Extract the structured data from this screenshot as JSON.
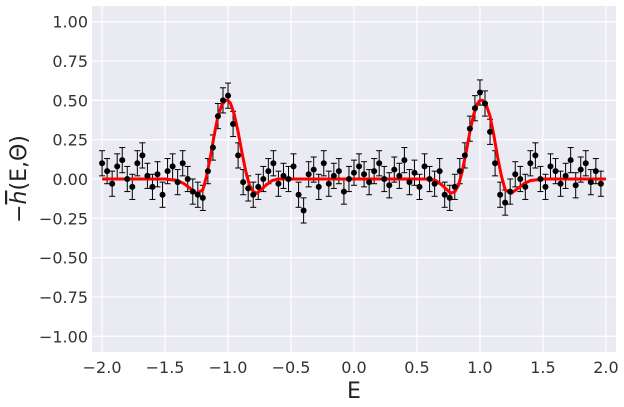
{
  "chart_data": {
    "type": "scatter",
    "xlabel": "E",
    "ylabel_main": "h",
    "ylabel_suffix": "(E,Θ)",
    "ylabel_prefix": "−",
    "xlim": [
      -2.08,
      2.08
    ],
    "ylim": [
      -1.1,
      1.1
    ],
    "grid": true,
    "colors": {
      "background": "#eaeaf2",
      "grid": "#ffffff",
      "points": "#000000",
      "fit_line": "#ff0000"
    },
    "xticks": [
      {
        "value": -2.0,
        "label": "−2.0"
      },
      {
        "value": -1.5,
        "label": "−1.5"
      },
      {
        "value": -1.0,
        "label": "−1.0"
      },
      {
        "value": -0.5,
        "label": "−0.5"
      },
      {
        "value": 0.0,
        "label": "0.0"
      },
      {
        "value": 0.5,
        "label": "0.5"
      },
      {
        "value": 1.0,
        "label": "1.0"
      },
      {
        "value": 1.5,
        "label": "1.5"
      },
      {
        "value": 2.0,
        "label": "2.0"
      }
    ],
    "yticks": [
      {
        "value": 1.0,
        "label": "1.00"
      },
      {
        "value": 0.75,
        "label": "0.75"
      },
      {
        "value": 0.5,
        "label": "0.50"
      },
      {
        "value": 0.25,
        "label": "0.25"
      },
      {
        "value": 0.0,
        "label": "0.00"
      },
      {
        "value": -0.25,
        "label": "−0.25"
      },
      {
        "value": -0.5,
        "label": "−0.50"
      },
      {
        "value": -0.75,
        "label": "−0.75"
      },
      {
        "value": -1.0,
        "label": "−1.00"
      }
    ],
    "series": [
      {
        "kind": "points_with_errorbars",
        "x": [
          -2.0,
          -1.96,
          -1.92,
          -1.88,
          -1.84,
          -1.8,
          -1.76,
          -1.72,
          -1.68,
          -1.64,
          -1.6,
          -1.56,
          -1.52,
          -1.48,
          -1.44,
          -1.4,
          -1.36,
          -1.32,
          -1.28,
          -1.24,
          -1.2,
          -1.16,
          -1.12,
          -1.08,
          -1.04,
          -1.0,
          -0.96,
          -0.92,
          -0.88,
          -0.84,
          -0.8,
          -0.76,
          -0.72,
          -0.68,
          -0.64,
          -0.6,
          -0.56,
          -0.52,
          -0.48,
          -0.44,
          -0.4,
          -0.36,
          -0.32,
          -0.28,
          -0.24,
          -0.2,
          -0.16,
          -0.12,
          -0.08,
          -0.04,
          0.0,
          0.04,
          0.08,
          0.12,
          0.16,
          0.2,
          0.24,
          0.28,
          0.32,
          0.36,
          0.4,
          0.44,
          0.48,
          0.52,
          0.56,
          0.6,
          0.64,
          0.68,
          0.72,
          0.76,
          0.8,
          0.84,
          0.88,
          0.92,
          0.96,
          1.0,
          1.04,
          1.08,
          1.12,
          1.16,
          1.2,
          1.24,
          1.28,
          1.32,
          1.36,
          1.4,
          1.44,
          1.48,
          1.52,
          1.56,
          1.6,
          1.64,
          1.68,
          1.72,
          1.76,
          1.8,
          1.84,
          1.88,
          1.92,
          1.96
        ],
        "y": [
          0.1,
          0.05,
          -0.03,
          0.08,
          0.12,
          0.0,
          -0.05,
          0.1,
          0.15,
          0.02,
          -0.05,
          0.03,
          -0.1,
          0.05,
          0.08,
          -0.02,
          0.1,
          0.0,
          -0.08,
          -0.1,
          -0.12,
          0.05,
          0.2,
          0.4,
          0.5,
          0.53,
          0.35,
          0.15,
          -0.02,
          -0.06,
          -0.1,
          -0.05,
          0.0,
          0.05,
          0.1,
          -0.03,
          0.02,
          0.0,
          0.08,
          -0.1,
          -0.2,
          0.03,
          0.06,
          -0.05,
          0.1,
          -0.03,
          0.02,
          0.05,
          -0.08,
          0.0,
          0.04,
          0.08,
          0.03,
          -0.02,
          0.05,
          0.1,
          0.0,
          -0.04,
          0.06,
          0.02,
          0.12,
          -0.02,
          0.04,
          -0.05,
          0.08,
          0.0,
          -0.03,
          0.05,
          -0.1,
          -0.12,
          -0.05,
          0.05,
          0.15,
          0.32,
          0.45,
          0.55,
          0.48,
          0.3,
          0.1,
          -0.1,
          -0.15,
          -0.08,
          0.03,
          0.0,
          -0.05,
          0.1,
          0.15,
          0.0,
          -0.05,
          0.08,
          0.05,
          -0.03,
          0.02,
          0.12,
          -0.04,
          0.06,
          0.1,
          -0.02,
          0.05,
          -0.03
        ],
        "yerr": 0.08
      },
      {
        "kind": "fit_line",
        "x": [
          -2.0,
          -1.9,
          -1.8,
          -1.7,
          -1.6,
          -1.5,
          -1.4,
          -1.35,
          -1.3,
          -1.25,
          -1.2,
          -1.17,
          -1.14,
          -1.11,
          -1.08,
          -1.05,
          -1.02,
          -1.0,
          -0.98,
          -0.95,
          -0.92,
          -0.89,
          -0.86,
          -0.83,
          -0.8,
          -0.77,
          -0.74,
          -0.7,
          -0.65,
          -0.6,
          -0.5,
          -0.4,
          -0.3,
          -0.2,
          -0.1,
          0.0,
          0.1,
          0.2,
          0.3,
          0.4,
          0.5,
          0.6,
          0.65,
          0.7,
          0.74,
          0.77,
          0.8,
          0.83,
          0.86,
          0.89,
          0.92,
          0.95,
          0.98,
          1.0,
          1.02,
          1.05,
          1.08,
          1.11,
          1.14,
          1.17,
          1.2,
          1.25,
          1.3,
          1.35,
          1.4,
          1.5,
          1.6,
          1.7,
          1.8,
          1.9,
          2.0
        ],
        "y": [
          0.0,
          0.0,
          0.0,
          0.0,
          0.0,
          0.0,
          -0.01,
          -0.03,
          -0.06,
          -0.09,
          -0.07,
          0.02,
          0.14,
          0.28,
          0.4,
          0.47,
          0.5,
          0.5,
          0.48,
          0.41,
          0.3,
          0.17,
          0.05,
          -0.04,
          -0.08,
          -0.09,
          -0.07,
          -0.04,
          -0.01,
          0.0,
          0.0,
          0.0,
          0.0,
          0.0,
          0.0,
          0.0,
          0.0,
          0.0,
          0.0,
          0.0,
          0.0,
          0.0,
          -0.01,
          -0.04,
          -0.07,
          -0.09,
          -0.08,
          -0.04,
          0.05,
          0.17,
          0.3,
          0.41,
          0.48,
          0.5,
          0.5,
          0.47,
          0.4,
          0.28,
          0.14,
          0.02,
          -0.07,
          -0.09,
          -0.06,
          -0.03,
          -0.01,
          0.0,
          0.0,
          0.0,
          0.0,
          0.0,
          0.0
        ]
      }
    ]
  }
}
